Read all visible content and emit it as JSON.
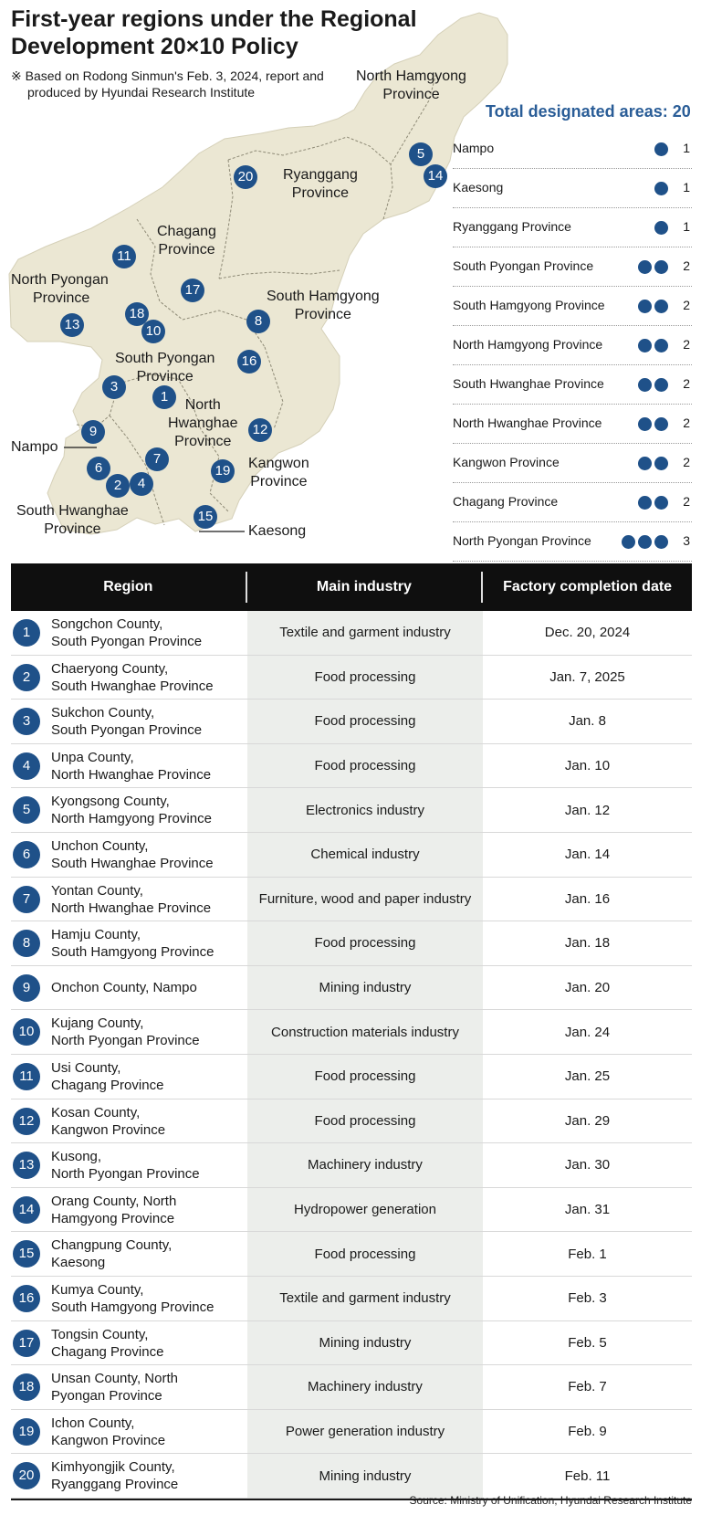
{
  "title_line1": "First-year regions under the Regional",
  "title_line2": "Development 20×10 Policy",
  "note_line1": "※ Based on Rodong Sinmun's Feb. 3, 2024, report and",
  "note_line2": "produced by Hyundai Research Institute",
  "colors": {
    "map_fill": "#ebe7d3",
    "marker": "#1f5189",
    "accent_text": "#2a5d97",
    "table_header_bg": "#0f0f0f",
    "industry_bg": "#eceeeb"
  },
  "map": {
    "labels": {
      "north_hamgyong": [
        "North Hamgyong",
        "Province"
      ],
      "ryanggang": [
        "Ryanggang",
        "Province"
      ],
      "chagang": [
        "Chagang",
        "Province"
      ],
      "north_pyongan": [
        "North Pyongan",
        "Province"
      ],
      "south_hamgyong": [
        "South Hamgyong",
        "Province"
      ],
      "south_pyongan": [
        "South Pyongan",
        "Province"
      ],
      "north_hwanghae": [
        "North",
        "Hwanghae",
        "Province"
      ],
      "kangwon": [
        "Kangwon",
        "Province"
      ],
      "south_hwanghae": [
        "South Hwanghae",
        "Province"
      ],
      "nampo": "Nampo",
      "kaesong": "Kaesong"
    },
    "markers": [
      "1",
      "2",
      "3",
      "4",
      "5",
      "6",
      "7",
      "8",
      "9",
      "10",
      "11",
      "12",
      "13",
      "14",
      "15",
      "16",
      "17",
      "18",
      "19",
      "20"
    ]
  },
  "tally": {
    "heading": "Total designated areas: 20",
    "items": [
      {
        "name": "Nampo",
        "count": "1",
        "dots": 1
      },
      {
        "name": "Kaesong",
        "count": "1",
        "dots": 1
      },
      {
        "name": "Ryanggang Province",
        "count": "1",
        "dots": 1
      },
      {
        "name": "South Pyongan Province",
        "count": "2",
        "dots": 2
      },
      {
        "name": "South Hamgyong Province",
        "count": "2",
        "dots": 2
      },
      {
        "name": "North Hamgyong Province",
        "count": "2",
        "dots": 2
      },
      {
        "name": "South Hwanghae Province",
        "count": "2",
        "dots": 2
      },
      {
        "name": "North Hwanghae Province",
        "count": "2",
        "dots": 2
      },
      {
        "name": "Kangwon Province",
        "count": "2",
        "dots": 2
      },
      {
        "name": "Chagang Province",
        "count": "2",
        "dots": 2
      },
      {
        "name": "North Pyongan Province",
        "count": "3",
        "dots": 3
      }
    ]
  },
  "table": {
    "headers": [
      "Region",
      "Main industry",
      "Factory completion date"
    ],
    "rows": [
      {
        "num": "1",
        "region": [
          "Songchon County,",
          "South Pyongan Province"
        ],
        "industry": "Textile and garment industry",
        "date": "Dec. 20, 2024"
      },
      {
        "num": "2",
        "region": [
          "Chaeryong County,",
          "South Hwanghae Province"
        ],
        "industry": "Food processing",
        "date": "Jan. 7, 2025"
      },
      {
        "num": "3",
        "region": [
          "Sukchon County,",
          "South Pyongan Province"
        ],
        "industry": "Food processing",
        "date": "Jan. 8"
      },
      {
        "num": "4",
        "region": [
          "Unpa County,",
          "North Hwanghae Province"
        ],
        "industry": "Food processing",
        "date": "Jan. 10"
      },
      {
        "num": "5",
        "region": [
          "Kyongsong County,",
          "North Hamgyong Province"
        ],
        "industry": "Electronics industry",
        "date": "Jan. 12"
      },
      {
        "num": "6",
        "region": [
          "Unchon County,",
          "South Hwanghae Province"
        ],
        "industry": "Chemical industry",
        "date": "Jan. 14"
      },
      {
        "num": "7",
        "region": [
          "Yontan County,",
          "North Hwanghae Province"
        ],
        "industry": "Furniture, wood and paper industry",
        "date": "Jan. 16"
      },
      {
        "num": "8",
        "region": [
          "Hamju County,",
          "South Hamgyong Province"
        ],
        "industry": "Food processing",
        "date": "Jan. 18"
      },
      {
        "num": "9",
        "region": [
          "Onchon County, Nampo",
          ""
        ],
        "industry": "Mining industry",
        "date": "Jan. 20"
      },
      {
        "num": "10",
        "region": [
          "Kujang County,",
          "North Pyongan Province"
        ],
        "industry": "Construction materials industry",
        "date": "Jan. 24"
      },
      {
        "num": "11",
        "region": [
          "Usi County,",
          "Chagang Province"
        ],
        "industry": "Food processing",
        "date": "Jan. 25"
      },
      {
        "num": "12",
        "region": [
          "Kosan County,",
          "Kangwon Province"
        ],
        "industry": "Food processing",
        "date": "Jan. 29"
      },
      {
        "num": "13",
        "region": [
          "Kusong,",
          "North Pyongan Province"
        ],
        "industry": "Machinery industry",
        "date": "Jan. 30"
      },
      {
        "num": "14",
        "region": [
          "Orang County, North",
          "Hamgyong Province"
        ],
        "industry": "Hydropower generation",
        "date": "Jan. 31"
      },
      {
        "num": "15",
        "region": [
          "Changpung County,",
          "Kaesong"
        ],
        "industry": "Food processing",
        "date": "Feb. 1"
      },
      {
        "num": "16",
        "region": [
          "Kumya County,",
          "South Hamgyong Province"
        ],
        "industry": "Textile and garment industry",
        "date": "Feb. 3"
      },
      {
        "num": "17",
        "region": [
          "Tongsin County,",
          "Chagang Province"
        ],
        "industry": "Mining industry",
        "date": "Feb. 5"
      },
      {
        "num": "18",
        "region": [
          "Unsan County, North",
          "Pyongan Province"
        ],
        "industry": "Machinery industry",
        "date": "Feb. 7"
      },
      {
        "num": "19",
        "region": [
          "Ichon County,",
          "Kangwon Province"
        ],
        "industry": "Power generation industry",
        "date": "Feb. 9"
      },
      {
        "num": "20",
        "region": [
          "Kimhyongjik County,",
          "Ryanggang Province"
        ],
        "industry": "Mining industry",
        "date": "Feb. 11"
      }
    ]
  },
  "source": "Source: Ministry of Unification, Hyundai Research Institute"
}
